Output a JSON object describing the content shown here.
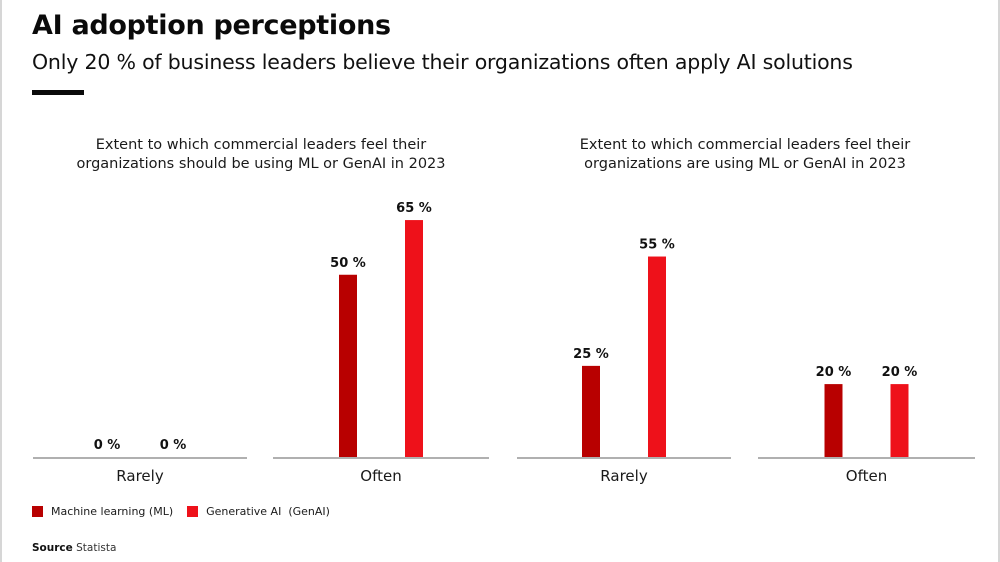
{
  "header": {
    "title": "AI adoption perceptions",
    "subtitle": "Only 20 % of business leaders believe their organizations often apply AI solutions"
  },
  "colors": {
    "ml": "#b80000",
    "genai": "#ee111a",
    "axis": "#b0b0b0",
    "label": "#111111"
  },
  "chart_data": [
    {
      "type": "bar",
      "title": "Extent to which commercial leaders feel their organizations should be using ML or GenAI in 2023",
      "title_lines": [
        "Extent to which commercial leaders feel their",
        "organizations should be using ML or GenAI in 2023"
      ],
      "categories": [
        "Rarely",
        "Often"
      ],
      "series": [
        {
          "name": "Machine learning (ML)",
          "values": [
            0,
            50
          ]
        },
        {
          "name": "Generative AI  (GenAI)",
          "values": [
            0,
            65
          ]
        }
      ],
      "value_labels": [
        [
          "0 %",
          "50 %"
        ],
        [
          "0 %",
          "65 %"
        ]
      ],
      "unit": "%",
      "xlabel": "",
      "ylabel": "",
      "ylim": [
        0,
        70
      ],
      "grid": false,
      "legend": "bottom-left"
    },
    {
      "type": "bar",
      "title": "Extent to which commercial leaders feel their organizations are using ML or GenAI in 2023",
      "title_lines": [
        "Extent to which commercial leaders feel their",
        "organizations are using ML or GenAI in 2023"
      ],
      "categories": [
        "Rarely",
        "Often"
      ],
      "series": [
        {
          "name": "Machine learning (ML)",
          "values": [
            25,
            20
          ]
        },
        {
          "name": "Generative AI  (GenAI)",
          "values": [
            55,
            20
          ]
        }
      ],
      "value_labels": [
        [
          "25 %",
          "20 %"
        ],
        [
          "55 %",
          "20 %"
        ]
      ],
      "unit": "%",
      "xlabel": "",
      "ylabel": "",
      "ylim": [
        0,
        70
      ],
      "grid": false,
      "legend": "bottom-left"
    }
  ],
  "legend": {
    "items": [
      {
        "label": "Machine learning (ML)",
        "color": "#b80000"
      },
      {
        "label": "Generative AI  (GenAI)",
        "color": "#ee111a"
      }
    ]
  },
  "source": {
    "label": "Source",
    "value": "Statista"
  }
}
